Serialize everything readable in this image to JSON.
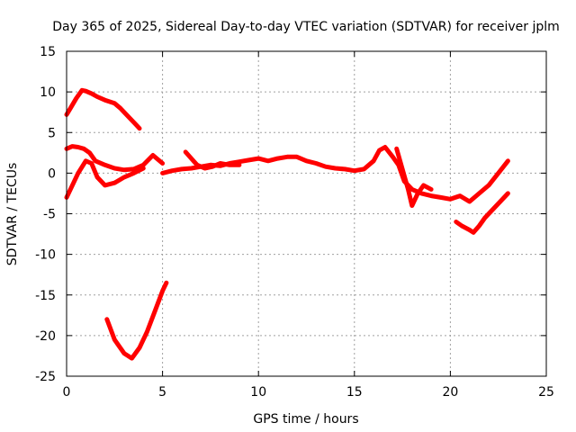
{
  "chart_data": {
    "type": "line",
    "title": "Day 365 of 2025, Sidereal Day-to-day VTEC variation (SDTVAR) for receiver jplm",
    "xlabel": "GPS time / hours",
    "ylabel": "SDTVAR / TECUs",
    "xlim": [
      0,
      25
    ],
    "ylim": [
      -25,
      15
    ],
    "x_ticks": [
      0,
      5,
      10,
      15,
      20,
      25
    ],
    "y_ticks": [
      15,
      10,
      5,
      0,
      -5,
      -10,
      -15,
      -20,
      -25
    ],
    "grid": true,
    "legend": "none",
    "color": "#ff0000",
    "series": [
      {
        "name": "segment-1",
        "x": [
          0.0,
          0.2,
          0.5,
          0.8,
          1.0,
          1.3,
          1.6,
          2.0,
          2.5,
          2.8,
          3.2,
          3.6,
          3.8
        ],
        "y": [
          7.2,
          8.0,
          9.2,
          10.2,
          10.1,
          9.8,
          9.4,
          9.0,
          8.6,
          8.0,
          7.0,
          6.0,
          5.5
        ]
      },
      {
        "name": "segment-2",
        "x": [
          0.0,
          0.3,
          0.6,
          0.9,
          1.2,
          1.5,
          2.0,
          2.5,
          3.0,
          3.5,
          4.0,
          4.5,
          5.0
        ],
        "y": [
          3.0,
          3.3,
          3.2,
          3.0,
          2.5,
          1.5,
          1.0,
          0.6,
          0.4,
          0.5,
          1.0,
          2.2,
          1.2
        ]
      },
      {
        "name": "segment-3",
        "x": [
          0.0,
          0.3,
          0.6,
          1.0,
          1.3,
          1.6,
          2.0,
          2.5,
          3.0,
          3.5,
          4.0
        ],
        "y": [
          -3.0,
          -1.5,
          0.0,
          1.5,
          1.2,
          -0.5,
          -1.5,
          -1.2,
          -0.5,
          0.0,
          0.6
        ]
      },
      {
        "name": "segment-4",
        "x": [
          2.1,
          2.5,
          3.0,
          3.4,
          3.8,
          4.2,
          4.6,
          5.0,
          5.2
        ],
        "y": [
          -18.0,
          -20.5,
          -22.2,
          -22.8,
          -21.5,
          -19.5,
          -17.0,
          -14.5,
          -13.5
        ]
      },
      {
        "name": "segment-5",
        "x": [
          5.0,
          5.5,
          6.0,
          6.5,
          7.0,
          7.5,
          8.0,
          8.5,
          9.0,
          9.5,
          10.0,
          10.5,
          11.0,
          11.5,
          12.0,
          12.5,
          13.0,
          13.5,
          14.0,
          14.5,
          15.0,
          15.5,
          16.0,
          16.3,
          16.6,
          17.0,
          17.3,
          17.6,
          18.0,
          18.5,
          19.0,
          19.5,
          20.0,
          20.5,
          21.0,
          21.5,
          22.0,
          22.5,
          23.0
        ],
        "y": [
          0.0,
          0.3,
          0.5,
          0.6,
          0.8,
          1.0,
          0.9,
          1.2,
          1.4,
          1.6,
          1.8,
          1.5,
          1.8,
          2.0,
          2.0,
          1.5,
          1.2,
          0.8,
          0.6,
          0.5,
          0.3,
          0.5,
          1.5,
          2.8,
          3.2,
          2.0,
          1.0,
          -1.0,
          -2.0,
          -2.5,
          -2.8,
          -3.0,
          -3.2,
          -2.8,
          -3.5,
          -2.5,
          -1.5,
          0.0,
          1.5
        ]
      },
      {
        "name": "segment-6",
        "x": [
          6.2,
          6.5,
          6.8,
          7.2,
          7.6,
          8.0,
          8.5,
          9.0
        ],
        "y": [
          2.6,
          1.8,
          1.0,
          0.6,
          0.8,
          1.2,
          1.0,
          1.0
        ]
      },
      {
        "name": "segment-7",
        "x": [
          17.2,
          17.5,
          17.8,
          18.0,
          18.3,
          18.6,
          19.0
        ],
        "y": [
          3.0,
          0.5,
          -2.0,
          -4.0,
          -2.5,
          -1.5,
          -2.0
        ]
      },
      {
        "name": "segment-8",
        "x": [
          20.3,
          20.6,
          21.0,
          21.2,
          21.5,
          21.8,
          22.2,
          22.6,
          23.0
        ],
        "y": [
          -6.0,
          -6.5,
          -7.0,
          -7.3,
          -6.5,
          -5.5,
          -4.5,
          -3.5,
          -2.5
        ]
      }
    ]
  }
}
